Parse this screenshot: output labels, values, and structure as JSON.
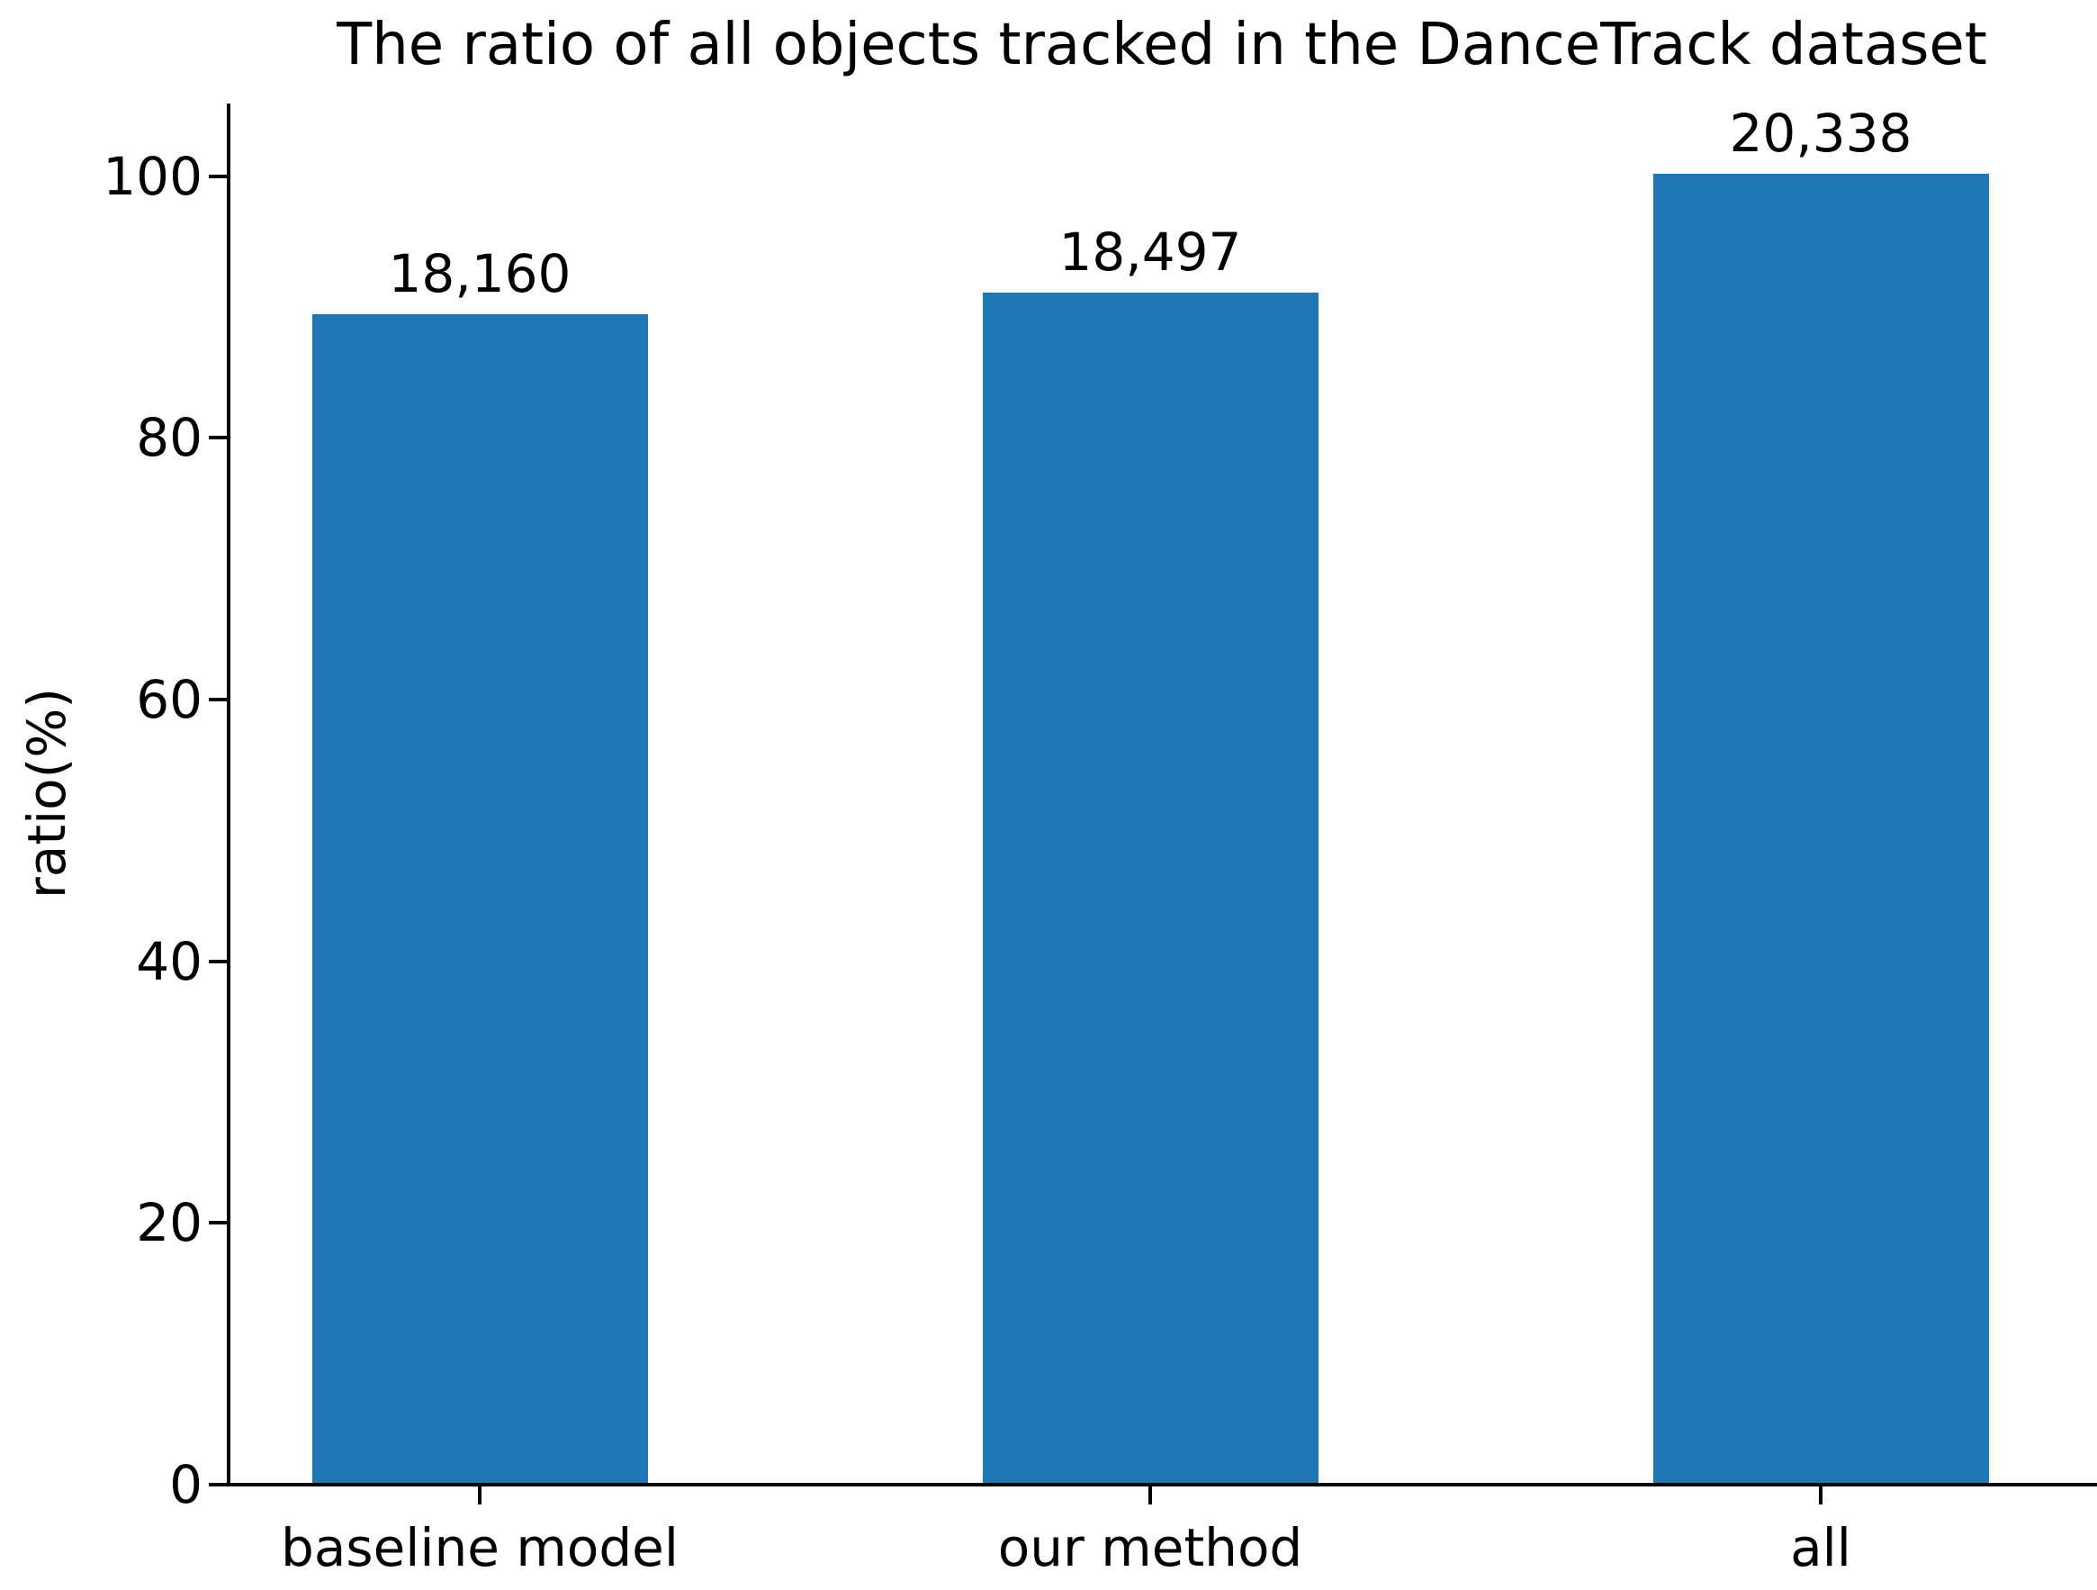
{
  "chart_data": {
    "type": "bar",
    "title": "The ratio of all objects tracked in the DanceTrack dataset",
    "ylabel": "ratio(%)",
    "xlabel": "",
    "categories": [
      "baseline model",
      "our method",
      "all"
    ],
    "values": [
      18160,
      18497,
      20338
    ],
    "value_labels": [
      "18,160",
      "18,497",
      "20,338"
    ],
    "ratios_percent": [
      89.29,
      90.95,
      100.0
    ],
    "yticks": [
      0,
      20,
      40,
      60,
      80,
      100
    ],
    "ytick_labels": [
      "0",
      "20",
      "40",
      "60",
      "80",
      "100"
    ],
    "ylim": [
      0,
      105.4
    ],
    "grid": false,
    "legend": false,
    "bar_color": "#1f77b4",
    "axis_color": "#000000",
    "text_color": "#000000",
    "background_color": "#ffffff"
  }
}
